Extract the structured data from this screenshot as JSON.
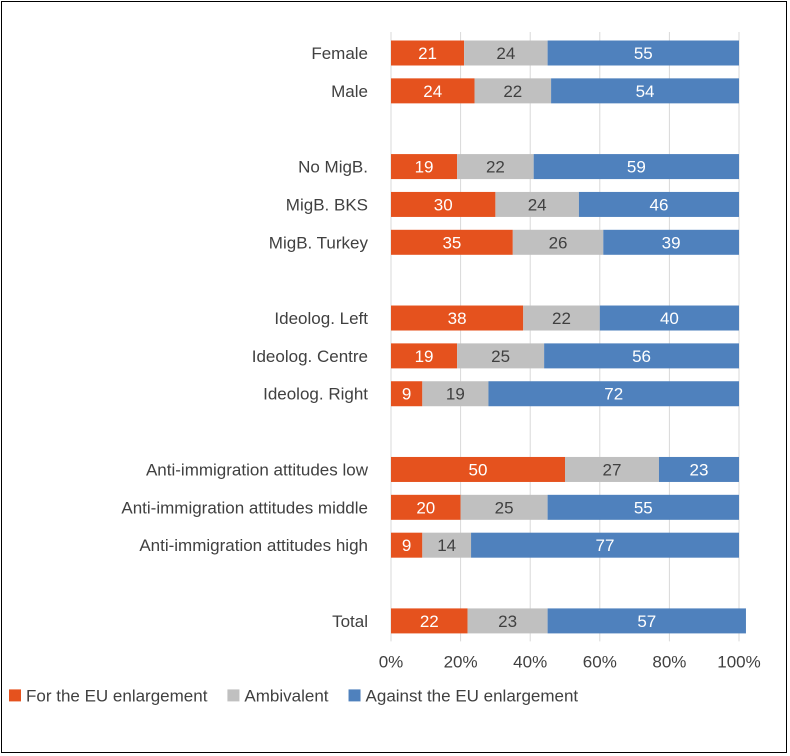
{
  "chart_data": {
    "type": "bar",
    "orientation": "horizontal",
    "stacked": true,
    "title": "",
    "xlabel": "",
    "ylabel": "",
    "xlim": [
      0,
      100
    ],
    "x_ticks": [
      "0%",
      "20%",
      "40%",
      "60%",
      "80%",
      "100%"
    ],
    "grid": "vertical gridlines",
    "legend_position": "bottom",
    "categories": [
      "Female",
      "Male",
      "",
      "No MigB.",
      "MigB. BKS",
      "MigB. Turkey",
      "",
      "Ideolog. Left",
      "Ideolog. Centre",
      "Ideolog. Right",
      "",
      "Anti-immigration attitudes low",
      "Anti-immigration attitudes middle",
      "Anti-immigration attitudes high",
      "",
      "Total"
    ],
    "series": [
      {
        "name": "For the EU enlargement",
        "color": "#E5521E",
        "label_color": "#FFFFFF",
        "values": [
          21,
          24,
          null,
          19,
          30,
          35,
          null,
          38,
          19,
          9,
          null,
          50,
          20,
          9,
          null,
          22
        ]
      },
      {
        "name": "Ambivalent",
        "color": "#C0C0C0",
        "label_color": "#404040",
        "values": [
          24,
          22,
          null,
          22,
          24,
          26,
          null,
          22,
          25,
          19,
          null,
          27,
          25,
          14,
          null,
          23
        ]
      },
      {
        "name": "Against the EU enlargement",
        "color": "#4F81BD",
        "label_color": "#FFFFFF",
        "values": [
          55,
          54,
          null,
          59,
          46,
          39,
          null,
          40,
          56,
          72,
          null,
          23,
          55,
          77,
          null,
          57
        ]
      }
    ]
  }
}
